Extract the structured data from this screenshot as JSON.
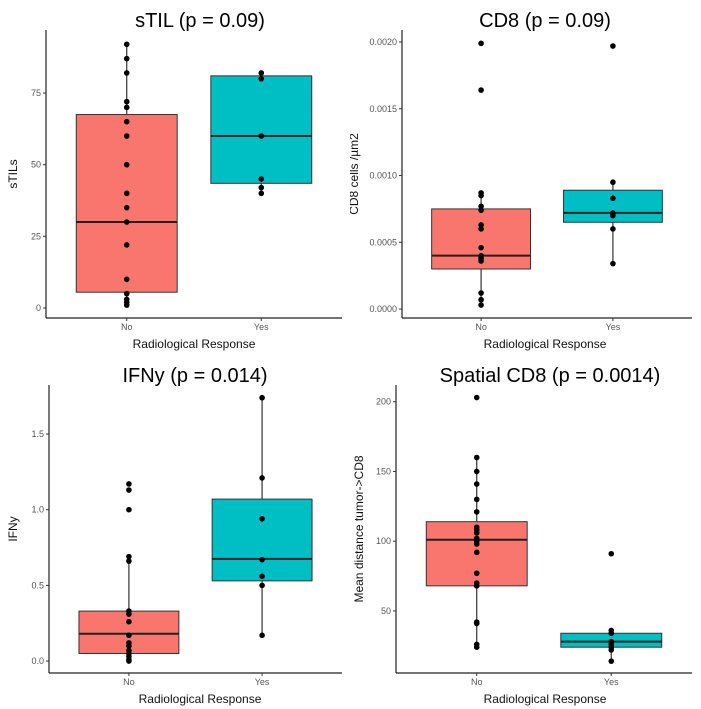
{
  "chart_data": [
    {
      "type": "box",
      "title": "sTIL (p = 0.09)",
      "xlabel": "Radiological Response",
      "ylabel": "sTILs",
      "categories": [
        "No",
        "Yes"
      ],
      "ylim": [
        -3.5,
        97
      ],
      "yticks": [
        0,
        25,
        50,
        75
      ],
      "ytick_labels": [
        "0",
        "25",
        "50",
        "75"
      ],
      "grid": false,
      "boxes": [
        {
          "q1": 5.5,
          "median": 30,
          "q3": 67.5,
          "whisker_low": 1,
          "whisker_high": 92
        },
        {
          "q1": 43.5,
          "median": 60,
          "q3": 81,
          "whisker_low": 40,
          "whisker_high": 82
        }
      ],
      "points": [
        [
          92,
          87,
          82,
          72,
          70,
          65,
          60,
          50,
          40,
          35,
          30,
          22,
          10,
          5,
          3,
          2,
          1
        ],
        [
          82,
          80,
          60,
          45,
          42,
          40
        ]
      ]
    },
    {
      "type": "box",
      "title": "CD8 (p = 0.09)",
      "xlabel": "Radiological Response",
      "ylabel": "CD8 cells /µm2",
      "categories": [
        "No",
        "Yes"
      ],
      "ylim": [
        -6.7e-05,
        0.00209
      ],
      "yticks": [
        0,
        0.0005,
        0.001,
        0.0015,
        0.002
      ],
      "ytick_labels": [
        "0.0000",
        "0.0005",
        "0.0010",
        "0.0015",
        "0.0020"
      ],
      "grid": false,
      "boxes": [
        {
          "q1": 0.0003,
          "median": 0.0004,
          "q3": 0.00075,
          "whisker_low": 3e-05,
          "whisker_high": 0.00087
        },
        {
          "q1": 0.00065,
          "median": 0.00072,
          "q3": 0.00089,
          "whisker_low": 0.00034,
          "whisker_high": 0.00095
        }
      ],
      "points": [
        [
          0.00199,
          0.00164,
          0.00087,
          0.00085,
          0.00077,
          0.00074,
          0.00063,
          0.0006,
          0.00046,
          0.0004,
          0.00038,
          0.00036,
          0.00012,
          7e-05,
          3e-05
        ],
        [
          0.00197,
          0.00095,
          0.00083,
          0.00072,
          0.0007,
          0.0006,
          0.00034
        ]
      ]
    },
    {
      "type": "box",
      "title": "IFNy (p = 0.014)",
      "xlabel": "Radiological Response",
      "ylabel": "IFNy",
      "categories": [
        "No",
        "Yes"
      ],
      "ylim": [
        -0.079,
        1.824
      ],
      "yticks": [
        0,
        0.5,
        1.0,
        1.5
      ],
      "ytick_labels": [
        "0.0",
        "0.5",
        "1.0",
        "1.5"
      ],
      "grid": false,
      "boxes": [
        {
          "q1": 0.05,
          "median": 0.18,
          "q3": 0.33,
          "whisker_low": 0,
          "whisker_high": 0.69
        },
        {
          "q1": 0.53,
          "median": 0.675,
          "q3": 1.07,
          "whisker_low": 0.17,
          "whisker_high": 1.74
        }
      ],
      "points": [
        [
          1.17,
          1.13,
          1.0,
          0.69,
          0.66,
          0.33,
          0.31,
          0.26,
          0.17,
          0.12,
          0.1,
          0.07,
          0.05,
          0.03,
          0.01,
          0.0
        ],
        [
          1.74,
          1.21,
          0.94,
          0.67,
          0.56,
          0.5,
          0.17
        ]
      ]
    },
    {
      "type": "box",
      "title": "Spatial CD8 (p = 0.0014)",
      "xlabel": "Radiological Response",
      "ylabel": "Mean distance tumor->CD8",
      "categories": [
        "No",
        "Yes"
      ],
      "ylim": [
        5.5,
        212
      ],
      "yticks": [
        50,
        100,
        150,
        200
      ],
      "ytick_labels": [
        "50",
        "100",
        "150",
        "200"
      ],
      "grid": false,
      "boxes": [
        {
          "q1": 68,
          "median": 101,
          "q3": 114,
          "whisker_low": 24,
          "whisker_high": 160
        },
        {
          "q1": 24,
          "median": 28,
          "q3": 34,
          "whisker_low": 14,
          "whisker_high": 36
        }
      ],
      "points": [
        [
          203,
          160,
          150,
          141,
          130,
          121,
          110,
          108,
          106,
          102,
          100,
          98,
          92,
          77,
          70,
          68,
          42,
          41,
          26,
          24
        ],
        [
          91,
          36,
          34,
          28,
          26,
          24,
          22,
          14
        ]
      ]
    }
  ],
  "colors": {
    "No": "#f8766d",
    "Yes": "#00bfc4"
  }
}
